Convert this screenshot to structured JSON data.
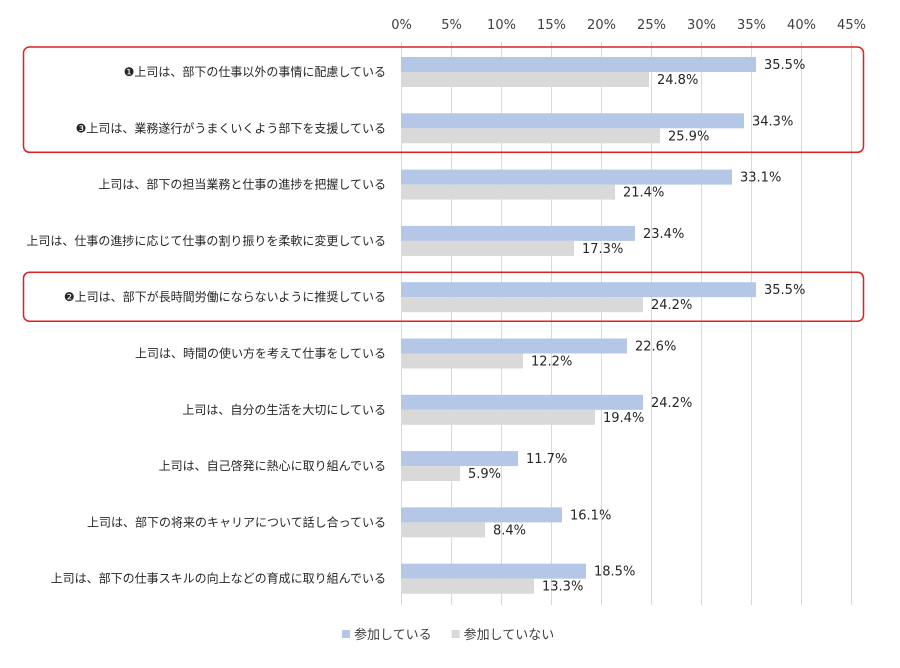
{
  "chart_data": {
    "type": "bar",
    "orientation": "horizontal",
    "categories": [
      "❶上司は、部下の仕事以外の事情に配慮している",
      "❸上司は、業務遂行がうまくいくよう部下を支援している",
      "上司は、部下の担当業務と仕事の進捗を把握している",
      "上司は、仕事の進捗に応じて仕事の割り振りを柔軟に変更している",
      "❷上司は、部下が長時間労働にならないように推奨している",
      "上司は、時間の使い方を考えて仕事をしている",
      "上司は、自分の生活を大切にしている",
      "上司は、自己啓発に熱心に取り組んでいる",
      "上司は、部下の将来のキャリアについて話し合っている",
      "上司は、部下の仕事スキルの向上などの育成に取り組んでいる"
    ],
    "series": [
      {
        "name": "参加している",
        "color": "#b4c7e7",
        "values": [
          35.5,
          34.3,
          33.1,
          23.4,
          35.5,
          22.6,
          24.2,
          11.7,
          16.1,
          18.5
        ],
        "labels": [
          "35.5%",
          "34.3%",
          "33.1%",
          "23.4%",
          "35.5%",
          "22.6%",
          "24.2%",
          "11.7%",
          "16.1%",
          "18.5%"
        ]
      },
      {
        "name": "参加していない",
        "color": "#d9d9d9",
        "values": [
          24.8,
          25.9,
          21.4,
          17.3,
          24.2,
          12.2,
          19.4,
          5.9,
          8.4,
          13.3
        ],
        "labels": [
          "24.8%",
          "25.9%",
          "21.4%",
          "17.3%",
          "24.2%",
          "12.2%",
          "19.4%",
          "5.9%",
          "8.4%",
          "13.3%"
        ]
      }
    ],
    "xlim": [
      0,
      45
    ],
    "xticks": [
      0,
      5,
      10,
      15,
      20,
      25,
      30,
      35,
      40,
      45
    ],
    "xtick_labels": [
      "0%",
      "5%",
      "10%",
      "15%",
      "20%",
      "25%",
      "30%",
      "35%",
      "40%",
      "45%"
    ],
    "grid": "vertical",
    "legend": "bottom",
    "highlight_boxes": [
      {
        "categories": [
          0,
          1
        ],
        "color": "#e02020"
      },
      {
        "categories": [
          4
        ],
        "color": "#e02020"
      }
    ]
  }
}
